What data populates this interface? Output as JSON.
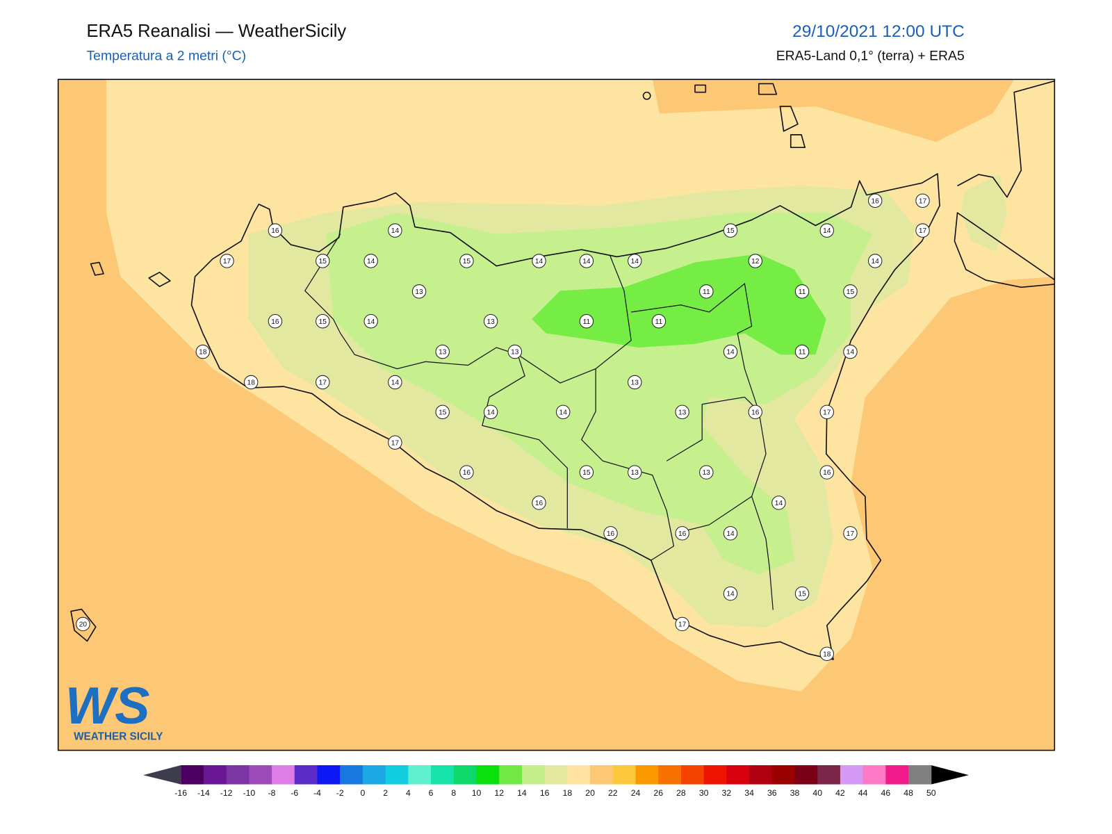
{
  "header": {
    "title": "ERA5 Reanalisi — WeatherSicily",
    "subtitle": "Temperatura a 2 metri (°C)",
    "date": "29/10/2021 12:00 UTC",
    "source": "ERA5-Land 0,1° (terra) + ERA5"
  },
  "stations": [
    16,
    14,
    17,
    15,
    14,
    15,
    14,
    14,
    14,
    15,
    14,
    16,
    17,
    17,
    14,
    12,
    13,
    11,
    11,
    15,
    16,
    15,
    14,
    13,
    11,
    11,
    18,
    13,
    13,
    14,
    11,
    14,
    18,
    17,
    14,
    13,
    15,
    14,
    14,
    13,
    16,
    17,
    17,
    16,
    15,
    13,
    13,
    16,
    16,
    14,
    16,
    16,
    14,
    17,
    14,
    15,
    17,
    18,
    20
  ],
  "colorbar": {
    "ticks": [
      -16,
      -14,
      -12,
      -10,
      -8,
      -6,
      -4,
      -2,
      0,
      2,
      4,
      6,
      8,
      10,
      12,
      14,
      16,
      18,
      20,
      22,
      24,
      26,
      28,
      30,
      32,
      34,
      36,
      38,
      40,
      42,
      44,
      46,
      48,
      50
    ],
    "colors": [
      "#4b0060",
      "#6a1796",
      "#7d35a6",
      "#9c4bb8",
      "#df7de6",
      "#5b2bc8",
      "#0b18f5",
      "#1779df",
      "#1ba8e5",
      "#12cce0",
      "#5ff0cf",
      "#16e3a8",
      "#0fd86a",
      "#0ae00b",
      "#72e845",
      "#c3ee8a",
      "#e3e8a0",
      "#fee4a0",
      "#fdc876",
      "#fdc73c",
      "#fa9800",
      "#f77200",
      "#f54400",
      "#ee1400",
      "#d8000c",
      "#b00010",
      "#990000",
      "#7a0016",
      "#7b2548",
      "#d499f5",
      "#ff7ac6",
      "#f01a8a",
      "#808080",
      "#3a3a3a"
    ]
  },
  "logo": {
    "mark": "WS",
    "text": "WEATHER SICILY"
  }
}
